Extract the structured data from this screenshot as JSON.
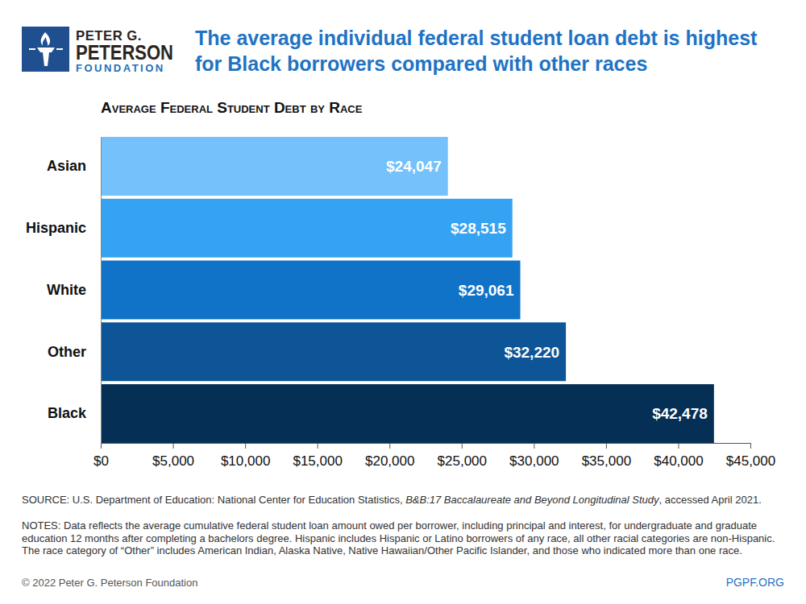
{
  "chart_data": {
    "type": "bar",
    "orientation": "horizontal",
    "logo": [
      "PETER G.",
      "PETERSON",
      "FOUNDATION"
    ],
    "title": [
      "The average individual federal student loan debt is highest",
      "for Black borrowers compared with other races"
    ],
    "subtitle": "Average Federal Student Debt by Race",
    "categories": [
      "Asian",
      "Hispanic",
      "White",
      "Other",
      "Black"
    ],
    "values": [
      24047,
      28515,
      29061,
      32220,
      42478
    ],
    "value_labels": [
      "$24,047",
      "$28,515",
      "$29,061",
      "$32,220",
      "$42,478"
    ],
    "colors": [
      "#74c1fb",
      "#36a3f2",
      "#1173c7",
      "#0e5597",
      "#062f56"
    ],
    "data_labels": true,
    "xlim": [
      0,
      45000
    ],
    "xticks": [
      {
        "value": 0,
        "label": "$0"
      },
      {
        "value": 5000,
        "label": "$5,000"
      },
      {
        "value": 10000,
        "label": "$10,000"
      },
      {
        "value": 15000,
        "label": "$15,000"
      },
      {
        "value": 20000,
        "label": "$20,000"
      },
      {
        "value": 25000,
        "label": "$25,000"
      },
      {
        "value": 30000,
        "label": "$30,000"
      },
      {
        "value": 35000,
        "label": "$35,000"
      },
      {
        "value": 40000,
        "label": "$40,000"
      },
      {
        "value": 45000,
        "label": "$45,000"
      }
    ],
    "source": [
      "SOURCE: U.S. Department of Education: National Center for Education Statistics, ",
      "B&B:17 Baccalaureate and Beyond Longitudinal Study",
      ", accessed April 2021."
    ],
    "notes": "NOTES: Data reflects the average cumulative federal student loan amount owed per borrower, including principal and interest, for undergraduate and graduate education 12 months after completing a bachelors degree. Hispanic includes Hispanic or Latino borrowers of any race, all other racial categories are non-Hispanic. The race category of “Other” includes American Indian, Alaska Native, Native Hawaiian/Other Pacific Islander, and those who indicated more than one race.",
    "copyright": "© 2022 Peter G. Peterson Foundation",
    "website": "PGPF.ORG"
  }
}
